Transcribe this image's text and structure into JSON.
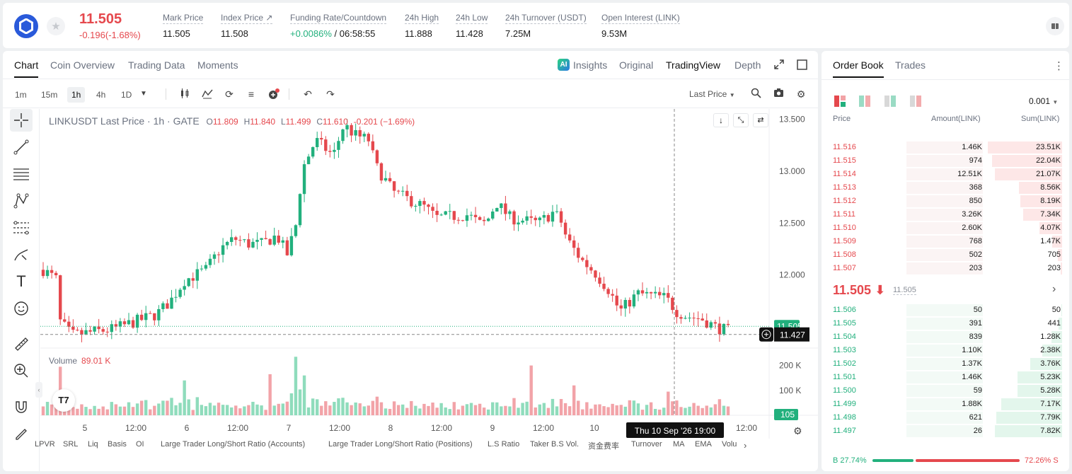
{
  "header": {
    "price": "11.505",
    "change": "-0.196(-1.68%)",
    "stats": [
      {
        "label": "Mark Price",
        "value": "11.505"
      },
      {
        "label": "Index Price ↗",
        "value": "11.508"
      },
      {
        "label": "Funding Rate/Countdown",
        "value_green": "+0.0086%",
        "value": " / 06:58:55"
      },
      {
        "label": "24h High",
        "value": "11.888"
      },
      {
        "label": "24h Low",
        "value": "11.428"
      },
      {
        "label": "24h Turnover (USDT)",
        "value": "7.25M"
      },
      {
        "label": "Open Interest (LINK)",
        "value": "9.53M"
      }
    ]
  },
  "chart_tabs": [
    "Chart",
    "Coin Overview",
    "Trading Data",
    "Moments"
  ],
  "views": [
    "Insights",
    "Original",
    "TradingView",
    "Depth"
  ],
  "timeframes": [
    "1m",
    "15m",
    "1h",
    "4h",
    "1D"
  ],
  "price_source": "Last Price",
  "legend": {
    "symbol": "LINKUSDT Last Price · 1h · GATE",
    "ohlc": [
      {
        "k": "O",
        "v": "11.809"
      },
      {
        "k": "H",
        "v": "11.840"
      },
      {
        "k": "L",
        "v": "11.499"
      },
      {
        "k": "C",
        "v": "11.610"
      }
    ],
    "change": "-0.201 (−1.69%)"
  },
  "volume_legend": {
    "label": "Volume",
    "value": "89.01 K"
  },
  "chart_data": {
    "type": "candlestick",
    "y_ticks": [
      "13.500",
      "13.000",
      "12.500",
      "12.000"
    ],
    "y_range": [
      11.35,
      13.6
    ],
    "x_ticks": [
      "5",
      "12:00",
      "6",
      "12:00",
      "7",
      "12:00",
      "8",
      "12:00",
      "9",
      "12:00",
      "10",
      "12:00"
    ],
    "current_price_label": "11.505",
    "crosshair_price_label": "11.427",
    "crosshair_time_label": "Thu 10 Sep '26   19:00",
    "volume_ticks": [
      "200 K",
      "100 K"
    ],
    "volume_last_label": "105",
    "volume_range": [
      0,
      250
    ]
  },
  "indicators": [
    "LPVR",
    "SRL",
    "Liq",
    "Basis",
    "OI",
    "Large Trader Long/Short Ratio (Accounts)",
    "Large Trader Long/Short Ratio (Positions)",
    "L.S Ratio",
    "Taker B.S Vol.",
    "资金费率",
    "Turnover",
    "MA",
    "EMA",
    "Volu"
  ],
  "orderbook": {
    "tabs": [
      "Order Book",
      "Trades"
    ],
    "precision": "0.001",
    "headers": {
      "price": "Price",
      "amount": "Amount(LINK)",
      "sum": "Sum(LINK)"
    },
    "asks": [
      {
        "price": "11.516",
        "amount": "1.46K",
        "sum": "23.51K",
        "depth": 1.0
      },
      {
        "price": "11.515",
        "amount": "974",
        "sum": "22.04K",
        "depth": 0.94
      },
      {
        "price": "11.514",
        "amount": "12.51K",
        "sum": "21.07K",
        "depth": 0.9
      },
      {
        "price": "11.513",
        "amount": "368",
        "sum": "8.56K",
        "depth": 0.58
      },
      {
        "price": "11.512",
        "amount": "850",
        "sum": "8.19K",
        "depth": 0.56
      },
      {
        "price": "11.511",
        "amount": "3.26K",
        "sum": "7.34K",
        "depth": 0.52
      },
      {
        "price": "11.510",
        "amount": "2.60K",
        "sum": "4.07K",
        "depth": 0.3
      },
      {
        "price": "11.509",
        "amount": "768",
        "sum": "1.47K",
        "depth": 0.13
      },
      {
        "price": "11.508",
        "amount": "502",
        "sum": "705",
        "depth": 0.06
      },
      {
        "price": "11.507",
        "amount": "203",
        "sum": "203",
        "depth": 0.02
      }
    ],
    "mid_price": "11.505 ⬇",
    "mid_sub": "11.505",
    "bids": [
      {
        "price": "11.506",
        "amount": "50",
        "sum": "50",
        "depth": 0.01
      },
      {
        "price": "11.505",
        "amount": "391",
        "sum": "441",
        "depth": 0.05
      },
      {
        "price": "11.504",
        "amount": "839",
        "sum": "1.28K",
        "depth": 0.14
      },
      {
        "price": "11.503",
        "amount": "1.10K",
        "sum": "2.38K",
        "depth": 0.27
      },
      {
        "price": "11.502",
        "amount": "1.37K",
        "sum": "3.76K",
        "depth": 0.43
      },
      {
        "price": "11.501",
        "amount": "1.46K",
        "sum": "5.23K",
        "depth": 0.6
      },
      {
        "price": "11.500",
        "amount": "59",
        "sum": "5.28K",
        "depth": 0.6
      },
      {
        "price": "11.499",
        "amount": "1.88K",
        "sum": "7.17K",
        "depth": 0.82
      },
      {
        "price": "11.498",
        "amount": "621",
        "sum": "7.79K",
        "depth": 0.89
      },
      {
        "price": "11.497",
        "amount": "26",
        "sum": "7.82K",
        "depth": 0.9
      }
    ],
    "buy_ratio": "B 27.74%",
    "sell_ratio": "72.26% S",
    "buy_fraction": 0.2774
  }
}
